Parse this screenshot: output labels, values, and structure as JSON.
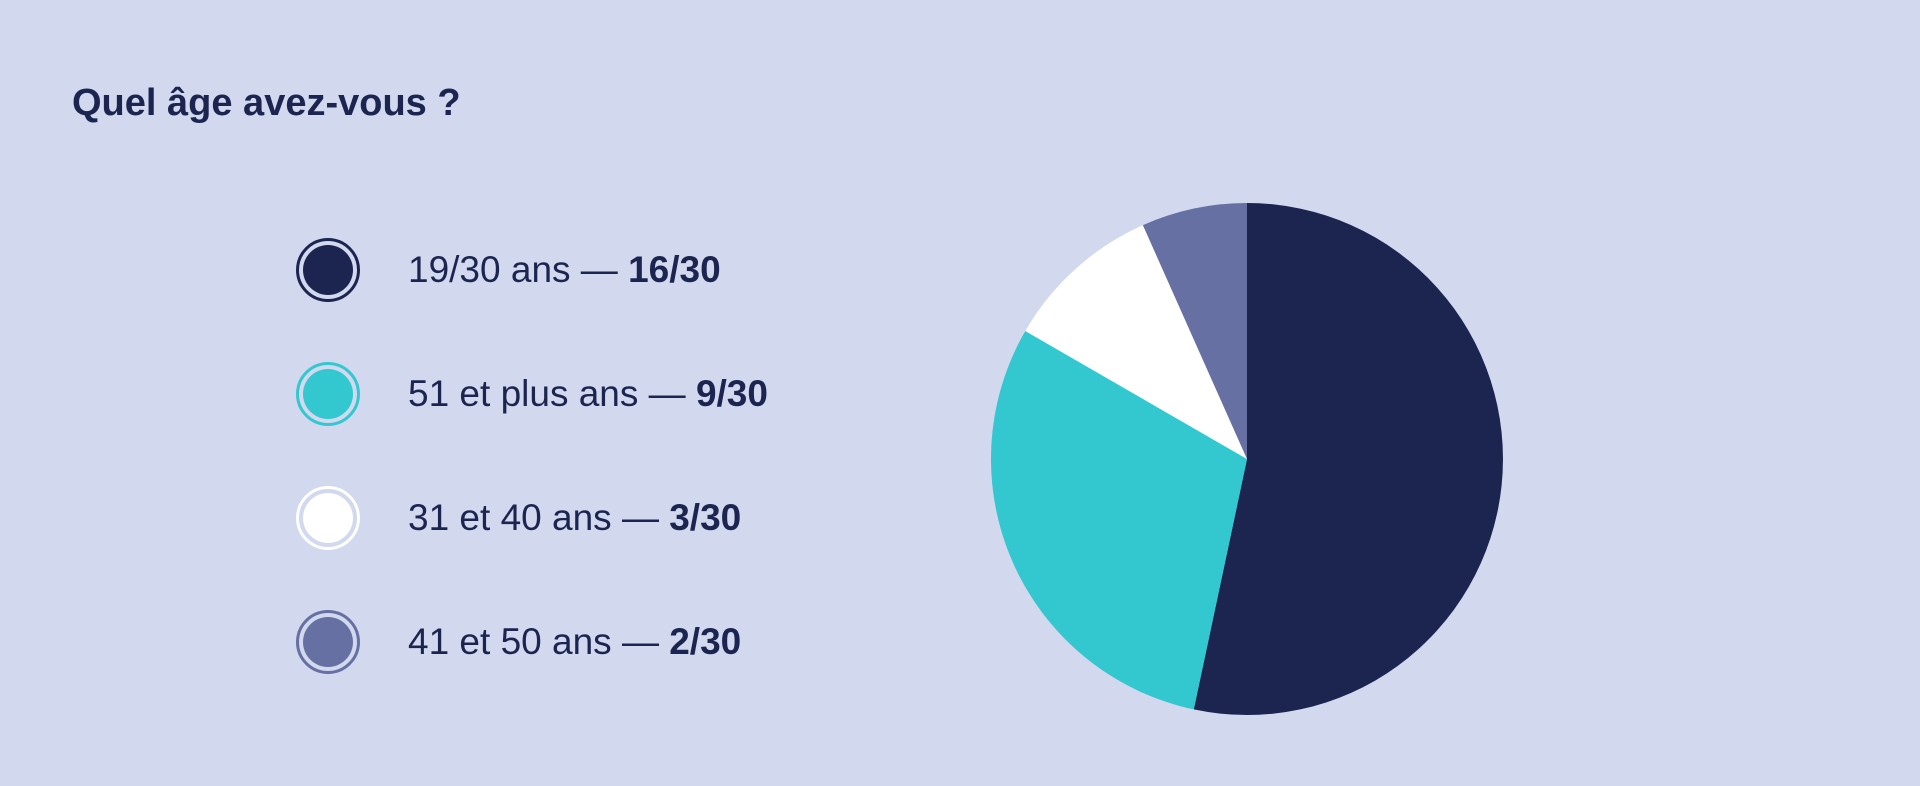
{
  "question": "Quel âge avez-vous ?",
  "legend": [
    {
      "label": "19/30 ans",
      "separator": " — ",
      "value": "16/30",
      "color": "#1c2550",
      "ring_color": "#1c2550"
    },
    {
      "label": "51 et plus ans",
      "separator": " — ",
      "value": "9/30",
      "color": "#33c8d0",
      "ring_color": "#33c8d0"
    },
    {
      "label": "31 et 40 ans",
      "separator": " — ",
      "value": "3/30",
      "color": "#ffffff",
      "ring_color": "#ffffff"
    },
    {
      "label": "41 et 50 ans",
      "separator": " — ",
      "value": "2/30",
      "color": "#6670a2",
      "ring_color": "#6670a2"
    }
  ],
  "chart_data": {
    "type": "pie",
    "title": "Quel âge avez-vous ?",
    "total": 30,
    "start": "top",
    "direction": "clockwise",
    "slices": [
      {
        "label": "19/30 ans",
        "value": 16,
        "color": "#1c2550"
      },
      {
        "label": "51 et plus ans",
        "value": 9,
        "color": "#33c8d0"
      },
      {
        "label": "31 et 40 ans",
        "value": 3,
        "color": "#ffffff"
      },
      {
        "label": "41 et 50 ans",
        "value": 2,
        "color": "#6670a2"
      }
    ]
  }
}
